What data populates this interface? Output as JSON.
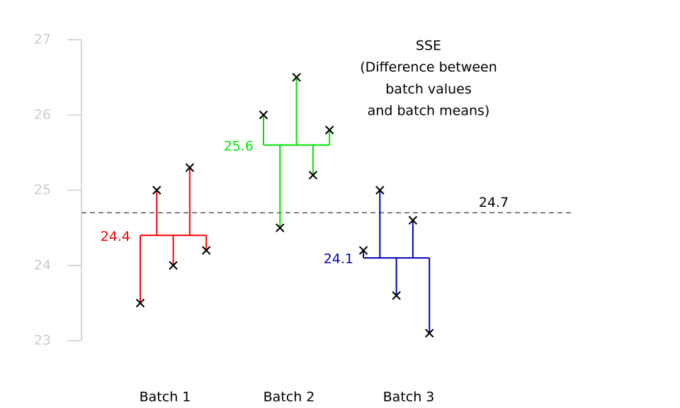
{
  "chart_data": {
    "type": "deviation",
    "groups": [
      {
        "category": "Batch 1",
        "color": "#ff0000",
        "values": [
          23.5,
          25.0,
          24.0,
          25.3,
          24.2
        ],
        "mean": 24.4
      },
      {
        "category": "Batch 2",
        "color": "#00e600",
        "values": [
          26.0,
          24.5,
          26.5,
          25.2,
          25.8
        ],
        "mean": 25.6
      },
      {
        "category": "Batch 3",
        "color": "#0000b3",
        "values": [
          24.2,
          25.0,
          23.6,
          24.6,
          23.1
        ],
        "mean": 24.1
      }
    ],
    "overall_mean": 24.7,
    "annotation": [
      "SSE",
      "(Difference between",
      "batch values",
      "and batch means)"
    ],
    "ylim": [
      23,
      27
    ],
    "yticks": [
      23,
      24,
      25,
      26,
      27
    ],
    "point_color": "#000000"
  }
}
